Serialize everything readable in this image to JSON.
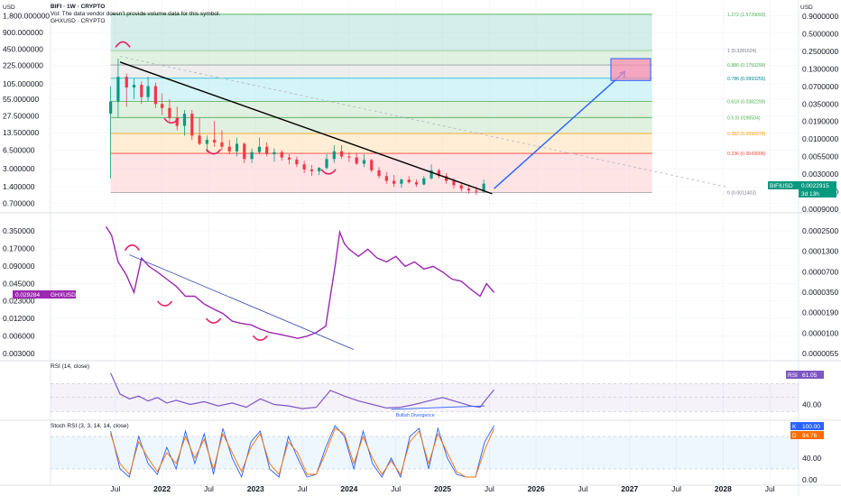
{
  "header": {
    "currency": "USD",
    "symbol_line": "BIFI · 1W · CRYPTO",
    "vol_note": "Vol: The data vendor doesn't provide volume data for this symbol.",
    "symbol2_line": "GHXUSD · CRYPTO"
  },
  "right_currency": "USD",
  "colors": {
    "purple": "#9c27b0",
    "rsi": "#7e57c2",
    "stoch_k": "#2962ff",
    "stoch_d": "#ff6d00",
    "trend_blue": "#2962ff",
    "bull": "#089981",
    "bear": "#f23645",
    "price_tag_green": "#089981",
    "ghx_tag": "#9c27b0"
  },
  "chart_data": [
    {
      "type": "candlestick",
      "name": "price-pane",
      "title": "BIFI · 1W · CRYPTO",
      "log_scale": true,
      "x_tick_labels": [
        "Jul",
        "2022",
        "Jul",
        "2023",
        "Jul",
        "2024",
        "Jul",
        "2025",
        "Jul",
        "2026",
        "Jul",
        "2027",
        "Jul",
        "2028",
        "Jul"
      ],
      "left_axis_labels": [
        "1,800.000000",
        "900.000000",
        "450.000000",
        "225.000000",
        "105.000000",
        "55.000000",
        "27.500000",
        "13.500000",
        "6.500000",
        "3.000000",
        "1.400000",
        "0.700000"
      ],
      "right_axis_labels": [
        "0.9000000",
        "0.5000000",
        "0.2500000",
        "0.1300000",
        "0.0700000",
        "0.0350000",
        "0.0190000",
        "0.0100000",
        "0.0055000",
        "0.0030000",
        "0.0016000",
        "0.0009000"
      ],
      "series": [
        {
          "name": "BIFIUSD",
          "values": [
            [
              2021.45,
              30,
              95,
              2,
              50
            ],
            [
              2021.53,
              50,
              300,
              25,
              140
            ],
            [
              2021.62,
              140,
              160,
              40,
              90
            ],
            [
              2021.7,
              90,
              130,
              55,
              100
            ],
            [
              2021.78,
              100,
              115,
              45,
              60
            ],
            [
              2021.85,
              60,
              140,
              50,
              95
            ],
            [
              2021.93,
              95,
              110,
              38,
              45
            ],
            [
              2022.0,
              45,
              70,
              28,
              38
            ],
            [
              2022.08,
              38,
              55,
              22,
              25
            ],
            [
              2022.16,
              25,
              40,
              15,
              18
            ],
            [
              2022.24,
              18,
              35,
              12,
              30
            ],
            [
              2022.32,
              30,
              35,
              10,
              12
            ],
            [
              2022.4,
              12,
              25,
              8,
              8.5
            ],
            [
              2022.48,
              8.5,
              12,
              6,
              10
            ],
            [
              2022.56,
              10,
              22,
              7.5,
              9
            ],
            [
              2022.64,
              9,
              15,
              6.5,
              7.5
            ],
            [
              2022.72,
              7.5,
              10,
              5.5,
              6.2
            ],
            [
              2022.8,
              6.2,
              11,
              5,
              8.5
            ],
            [
              2022.88,
              8.5,
              9,
              3.8,
              4.5
            ],
            [
              2022.96,
              4.5,
              7,
              3.8,
              6
            ],
            [
              2023.04,
              6,
              11,
              5.5,
              7.5
            ],
            [
              2023.12,
              7.5,
              9,
              5,
              5.5
            ],
            [
              2023.2,
              5.5,
              7,
              4,
              6
            ],
            [
              2023.28,
              6,
              6.5,
              4.2,
              4.8
            ],
            [
              2023.36,
              4.8,
              5.5,
              3.6,
              4.4
            ],
            [
              2023.44,
              4.4,
              5,
              3.2,
              3.6
            ],
            [
              2023.52,
              3.6,
              4.2,
              2.5,
              2.9
            ],
            [
              2023.6,
              2.9,
              3.5,
              2.2,
              2.7
            ],
            [
              2023.68,
              2.7,
              3.2,
              2.3,
              3.1
            ],
            [
              2023.76,
              3.1,
              5.5,
              2.9,
              4.5
            ],
            [
              2023.84,
              4.5,
              8,
              3.8,
              6.2
            ],
            [
              2023.92,
              6.2,
              8,
              4.5,
              5
            ],
            [
              2024.0,
              5,
              6,
              4,
              4.8
            ],
            [
              2024.08,
              4.8,
              5.8,
              3.5,
              3.7
            ],
            [
              2024.16,
              3.7,
              5.5,
              3.2,
              4.3
            ],
            [
              2024.24,
              4.3,
              4.5,
              2.6,
              2.8
            ],
            [
              2024.32,
              2.8,
              3.2,
              2,
              2.2
            ],
            [
              2024.4,
              2.2,
              2.6,
              1.6,
              1.8
            ],
            [
              2024.48,
              1.8,
              2.3,
              1.4,
              1.6
            ],
            [
              2024.56,
              1.6,
              2,
              1.35,
              1.9
            ],
            [
              2024.64,
              1.9,
              2.2,
              1.6,
              1.7
            ],
            [
              2024.72,
              1.7,
              1.9,
              1.4,
              1.55
            ],
            [
              2024.8,
              1.55,
              2.2,
              1.5,
              2
            ],
            [
              2024.88,
              2,
              3.6,
              1.9,
              2.8
            ],
            [
              2024.96,
              2.8,
              3,
              2,
              2.2
            ],
            [
              2025.04,
              2.2,
              2.5,
              1.6,
              1.8
            ],
            [
              2025.12,
              1.8,
              2,
              1.3,
              1.5
            ],
            [
              2025.2,
              1.5,
              1.7,
              1.15,
              1.3
            ],
            [
              2025.28,
              1.3,
              1.5,
              1.05,
              1.2
            ],
            [
              2025.36,
              1.2,
              1.4,
              1.0,
              1.15
            ],
            [
              2025.44,
              1.15,
              1.9,
              1.1,
              1.6
            ]
          ]
        }
      ],
      "fib_levels": [
        {
          "label": "1.272 (1.5729093)",
          "value": 1920
        },
        {
          "label": "1 (0.3281624)",
          "value": 420
        },
        {
          "label": "0.886 (0.1750299)",
          "value": 230
        },
        {
          "label": "0.786 (0.0993255)",
          "value": 132
        },
        {
          "label": "0.618 (0.0382299)",
          "value": 50
        },
        {
          "label": "0.5 (0.0195504)",
          "value": 25.5
        },
        {
          "label": "0.382 (0.0099978)",
          "value": 13.1
        },
        {
          "label": "0.236 (0.0043006)",
          "value": 5.7
        },
        {
          "label": "0 (0.0011403)",
          "value": 1.1
        }
      ],
      "fib_range": [
        2021.45,
        2025.62
      ],
      "price_tag": {
        "label": "BIFIUSD",
        "value": "0.0022915",
        "countdown": "3d 13h"
      }
    },
    {
      "type": "line",
      "name": "ghx-pane",
      "title": "GHXUSD · CRYPTO",
      "log_scale": true,
      "left_axis_labels": [
        "0.350000",
        "0.170000",
        "0.090000",
        "0.045000",
        "0.023000",
        "0.012000",
        "0.006000",
        "0.003000"
      ],
      "right_axis_labels": [
        "0.0002500",
        "0.0001300",
        "0.0000700",
        "0.0000350",
        "0.0000190",
        "0.0000100",
        "0.0000055"
      ],
      "series": [
        {
          "name": "GHXUSD",
          "x": [
            2021.4,
            2021.46,
            2021.53,
            2021.62,
            2021.7,
            2021.78,
            2021.86,
            2021.95,
            2022.05,
            2022.15,
            2022.25,
            2022.35,
            2022.45,
            2022.55,
            2022.65,
            2022.75,
            2022.85,
            2022.95,
            2023.05,
            2023.15,
            2023.25,
            2023.35,
            2023.45,
            2023.55,
            2023.65,
            2023.75,
            2023.8,
            2023.85,
            2023.9,
            2023.95,
            2024.0,
            2024.1,
            2024.2,
            2024.3,
            2024.4,
            2024.5,
            2024.6,
            2024.7,
            2024.8,
            2024.9,
            2025.0,
            2025.1,
            2025.2,
            2025.3,
            2025.4,
            2025.47,
            2025.55
          ],
          "values": [
            0.5,
            0.35,
            0.12,
            0.07,
            0.035,
            0.14,
            0.1,
            0.08,
            0.06,
            0.045,
            0.03,
            0.03,
            0.022,
            0.018,
            0.015,
            0.011,
            0.01,
            0.0095,
            0.008,
            0.007,
            0.0065,
            0.006,
            0.0055,
            0.006,
            0.007,
            0.009,
            0.03,
            0.1,
            0.4,
            0.25,
            0.2,
            0.15,
            0.2,
            0.14,
            0.12,
            0.15,
            0.1,
            0.12,
            0.09,
            0.1,
            0.08,
            0.06,
            0.055,
            0.04,
            0.03,
            0.05,
            0.035
          ]
        }
      ],
      "value_tag": {
        "label": "GHXUSD",
        "value": "0.029284"
      }
    },
    {
      "type": "line",
      "name": "rsi-pane",
      "title": "RSI (14, close)",
      "ylim": [
        20,
        100
      ],
      "y_tick_labels": [
        "40.00"
      ],
      "bands": [
        30,
        50,
        70
      ],
      "annotation": "Bullish Divergence",
      "series": [
        {
          "name": "RSI",
          "x": [
            2021.45,
            2021.55,
            2021.65,
            2021.75,
            2021.85,
            2021.95,
            2022.05,
            2022.15,
            2022.3,
            2022.45,
            2022.6,
            2022.75,
            2022.9,
            2023.05,
            2023.2,
            2023.35,
            2023.5,
            2023.65,
            2023.8,
            2023.95,
            2024.1,
            2024.25,
            2024.4,
            2024.55,
            2024.7,
            2024.85,
            2025.0,
            2025.15,
            2025.3,
            2025.4,
            2025.47,
            2025.55
          ],
          "values": [
            85,
            55,
            48,
            52,
            45,
            50,
            42,
            46,
            40,
            44,
            38,
            42,
            36,
            48,
            40,
            38,
            34,
            36,
            60,
            52,
            45,
            40,
            35,
            36,
            40,
            45,
            50,
            44,
            38,
            36,
            48,
            61.05
          ]
        }
      ],
      "current_value": "61.05"
    },
    {
      "type": "line",
      "name": "stoch-pane",
      "title": "Stoch RSI (3, 3, 14, 14, close)",
      "ylim": [
        0,
        100
      ],
      "y_tick_labels": [
        "40.00",
        "0.00"
      ],
      "bands": [
        20,
        80
      ],
      "series": [
        {
          "name": "K",
          "x": [
            2021.45,
            2021.55,
            2021.65,
            2021.75,
            2021.85,
            2021.95,
            2022.05,
            2022.15,
            2022.25,
            2022.35,
            2022.45,
            2022.55,
            2022.65,
            2022.75,
            2022.85,
            2022.95,
            2023.05,
            2023.15,
            2023.25,
            2023.35,
            2023.45,
            2023.55,
            2023.65,
            2023.75,
            2023.85,
            2023.95,
            2024.05,
            2024.15,
            2024.25,
            2024.35,
            2024.45,
            2024.55,
            2024.65,
            2024.75,
            2024.85,
            2024.95,
            2025.05,
            2025.15,
            2025.25,
            2025.35,
            2025.45,
            2025.55
          ],
          "values": [
            90,
            20,
            5,
            80,
            30,
            10,
            60,
            20,
            90,
            30,
            85,
            10,
            95,
            40,
            5,
            70,
            90,
            20,
            5,
            80,
            40,
            5,
            10,
            60,
            100,
            80,
            20,
            90,
            30,
            5,
            40,
            5,
            80,
            95,
            20,
            95,
            40,
            10,
            5,
            5,
            70,
            100
          ]
        },
        {
          "name": "D",
          "x": [
            2021.45,
            2021.55,
            2021.65,
            2021.75,
            2021.85,
            2021.95,
            2022.05,
            2022.15,
            2022.25,
            2022.35,
            2022.45,
            2022.55,
            2022.65,
            2022.75,
            2022.85,
            2022.95,
            2023.05,
            2023.15,
            2023.25,
            2023.35,
            2023.45,
            2023.55,
            2023.65,
            2023.75,
            2023.85,
            2023.95,
            2024.05,
            2024.15,
            2024.25,
            2024.35,
            2024.45,
            2024.55,
            2024.65,
            2024.75,
            2024.85,
            2024.95,
            2025.05,
            2025.15,
            2025.25,
            2025.35,
            2025.45,
            2025.55
          ],
          "values": [
            85,
            30,
            10,
            70,
            40,
            15,
            50,
            30,
            80,
            40,
            75,
            20,
            85,
            50,
            15,
            60,
            85,
            30,
            10,
            70,
            50,
            10,
            10,
            50,
            95,
            85,
            30,
            80,
            40,
            10,
            35,
            10,
            70,
            90,
            30,
            85,
            50,
            15,
            5,
            5,
            55,
            94.76
          ]
        }
      ],
      "k_value": "100.00",
      "d_value": "94.76"
    }
  ]
}
